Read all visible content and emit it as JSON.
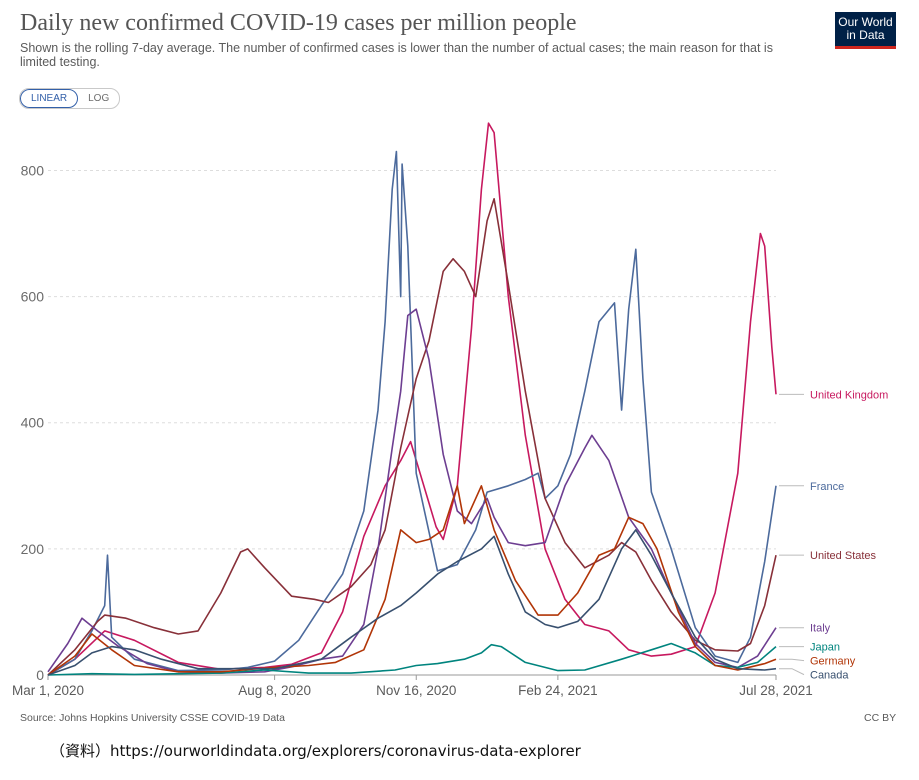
{
  "header": {
    "title": "Daily new confirmed COVID-19 cases per million people",
    "subtitle": "Shown is the rolling 7-day average. The number of confirmed cases is lower than the number of actual cases; the main reason for that is limited testing.",
    "logo_line1": "Our World",
    "logo_line2": "in Data"
  },
  "scale_toggle": {
    "linear_label": "LINEAR",
    "log_label": "LOG",
    "selected": "LINEAR"
  },
  "footer": {
    "source": "Source: Johns Hopkins University CSSE COVID-19 Data",
    "license": "CC BY",
    "note": "（資料）https://ourworldindata.org/explorers/coronavirus-data-explorer"
  },
  "colors": {
    "United Kingdom": "#c7195f",
    "France": "#4c6a9c",
    "United States": "#883039",
    "Italy": "#6d3e91",
    "Japan": "#00847e",
    "Germany": "#b13507",
    "Canada": "#38506f",
    "grid": "#dddddd"
  },
  "chart_data": {
    "type": "line",
    "title": "Daily new confirmed COVID-19 cases per million people",
    "xlabel": "",
    "ylabel": "",
    "x_tick_labels": [
      "Mar 1, 2020",
      "Aug 8, 2020",
      "Nov 16, 2020",
      "Feb 24, 2021",
      "Jul 28, 2021"
    ],
    "x_ticks": [
      "2020-03-01",
      "2020-08-08",
      "2020-11-16",
      "2021-02-24",
      "2021-07-28"
    ],
    "y_ticks": [
      0,
      200,
      400,
      600,
      800
    ],
    "ylim": [
      0,
      880
    ],
    "xlim": [
      "2020-03-01",
      "2021-07-28"
    ],
    "grid": "horizontal dashed",
    "legend": "line-end labels at right",
    "series": [
      {
        "name": "United Kingdom",
        "points": [
          [
            "2020-03-01",
            0
          ],
          [
            "2020-03-20",
            25
          ],
          [
            "2020-04-10",
            70
          ],
          [
            "2020-05-01",
            55
          ],
          [
            "2020-06-01",
            20
          ],
          [
            "2020-07-01",
            9
          ],
          [
            "2020-08-01",
            12
          ],
          [
            "2020-08-20",
            17
          ],
          [
            "2020-09-10",
            35
          ],
          [
            "2020-09-25",
            100
          ],
          [
            "2020-10-10",
            220
          ],
          [
            "2020-10-25",
            300
          ],
          [
            "2020-11-05",
            340
          ],
          [
            "2020-11-12",
            370
          ],
          [
            "2020-11-30",
            235
          ],
          [
            "2020-12-05",
            215
          ],
          [
            "2020-12-15",
            300
          ],
          [
            "2020-12-25",
            550
          ],
          [
            "2021-01-01",
            770
          ],
          [
            "2021-01-06",
            875
          ],
          [
            "2021-01-10",
            860
          ],
          [
            "2021-01-20",
            600
          ],
          [
            "2021-02-01",
            380
          ],
          [
            "2021-02-15",
            200
          ],
          [
            "2021-03-01",
            120
          ],
          [
            "2021-03-15",
            80
          ],
          [
            "2021-04-01",
            70
          ],
          [
            "2021-04-15",
            40
          ],
          [
            "2021-05-01",
            30
          ],
          [
            "2021-05-15",
            33
          ],
          [
            "2021-06-01",
            45
          ],
          [
            "2021-06-15",
            130
          ],
          [
            "2021-07-01",
            320
          ],
          [
            "2021-07-10",
            560
          ],
          [
            "2021-07-17",
            700
          ],
          [
            "2021-07-20",
            680
          ],
          [
            "2021-07-25",
            520
          ],
          [
            "2021-07-28",
            445
          ]
        ]
      },
      {
        "name": "France",
        "points": [
          [
            "2020-03-01",
            0
          ],
          [
            "2020-03-20",
            25
          ],
          [
            "2020-04-01",
            70
          ],
          [
            "2020-04-10",
            110
          ],
          [
            "2020-04-12",
            190
          ],
          [
            "2020-04-15",
            60
          ],
          [
            "2020-05-01",
            25
          ],
          [
            "2020-06-01",
            7
          ],
          [
            "2020-07-01",
            8
          ],
          [
            "2020-07-20",
            12
          ],
          [
            "2020-08-08",
            22
          ],
          [
            "2020-08-25",
            55
          ],
          [
            "2020-09-10",
            110
          ],
          [
            "2020-09-25",
            160
          ],
          [
            "2020-10-10",
            260
          ],
          [
            "2020-10-20",
            420
          ],
          [
            "2020-10-25",
            560
          ],
          [
            "2020-10-30",
            770
          ],
          [
            "2020-11-02",
            830
          ],
          [
            "2020-11-05",
            600
          ],
          [
            "2020-11-06",
            810
          ],
          [
            "2020-11-10",
            680
          ],
          [
            "2020-11-16",
            320
          ],
          [
            "2020-12-01",
            165
          ],
          [
            "2020-12-15",
            175
          ],
          [
            "2020-12-28",
            230
          ],
          [
            "2021-01-05",
            290
          ],
          [
            "2021-01-20",
            300
          ],
          [
            "2021-02-01",
            310
          ],
          [
            "2021-02-10",
            320
          ],
          [
            "2021-02-15",
            280
          ],
          [
            "2021-02-24",
            300
          ],
          [
            "2021-03-05",
            350
          ],
          [
            "2021-03-15",
            450
          ],
          [
            "2021-03-25",
            560
          ],
          [
            "2021-04-05",
            590
          ],
          [
            "2021-04-10",
            420
          ],
          [
            "2021-04-15",
            580
          ],
          [
            "2021-04-20",
            675
          ],
          [
            "2021-04-25",
            470
          ],
          [
            "2021-05-01",
            290
          ],
          [
            "2021-05-15",
            200
          ],
          [
            "2021-06-01",
            75
          ],
          [
            "2021-06-15",
            30
          ],
          [
            "2021-07-01",
            20
          ],
          [
            "2021-07-10",
            60
          ],
          [
            "2021-07-20",
            180
          ],
          [
            "2021-07-28",
            300
          ]
        ]
      },
      {
        "name": "United States",
        "points": [
          [
            "2020-03-01",
            0
          ],
          [
            "2020-03-20",
            40
          ],
          [
            "2020-04-05",
            85
          ],
          [
            "2020-04-10",
            95
          ],
          [
            "2020-04-25",
            90
          ],
          [
            "2020-05-15",
            75
          ],
          [
            "2020-06-01",
            65
          ],
          [
            "2020-06-15",
            70
          ],
          [
            "2020-07-01",
            130
          ],
          [
            "2020-07-15",
            195
          ],
          [
            "2020-07-20",
            200
          ],
          [
            "2020-08-01",
            170
          ],
          [
            "2020-08-20",
            125
          ],
          [
            "2020-09-05",
            120
          ],
          [
            "2020-09-15",
            115
          ],
          [
            "2020-10-01",
            140
          ],
          [
            "2020-10-15",
            175
          ],
          [
            "2020-10-25",
            230
          ],
          [
            "2020-11-05",
            360
          ],
          [
            "2020-11-16",
            470
          ],
          [
            "2020-11-25",
            530
          ],
          [
            "2020-12-05",
            640
          ],
          [
            "2020-12-12",
            660
          ],
          [
            "2020-12-20",
            640
          ],
          [
            "2020-12-28",
            600
          ],
          [
            "2021-01-05",
            720
          ],
          [
            "2021-01-10",
            755
          ],
          [
            "2021-01-20",
            620
          ],
          [
            "2021-02-01",
            450
          ],
          [
            "2021-02-15",
            280
          ],
          [
            "2021-03-01",
            210
          ],
          [
            "2021-03-15",
            170
          ],
          [
            "2021-04-01",
            190
          ],
          [
            "2021-04-10",
            210
          ],
          [
            "2021-04-20",
            195
          ],
          [
            "2021-05-01",
            150
          ],
          [
            "2021-05-15",
            100
          ],
          [
            "2021-06-01",
            55
          ],
          [
            "2021-06-15",
            40
          ],
          [
            "2021-07-01",
            38
          ],
          [
            "2021-07-10",
            50
          ],
          [
            "2021-07-20",
            110
          ],
          [
            "2021-07-28",
            190
          ]
        ]
      },
      {
        "name": "Italy",
        "points": [
          [
            "2020-03-01",
            5
          ],
          [
            "2020-03-15",
            50
          ],
          [
            "2020-03-25",
            90
          ],
          [
            "2020-04-05",
            70
          ],
          [
            "2020-04-20",
            45
          ],
          [
            "2020-05-10",
            18
          ],
          [
            "2020-06-01",
            5
          ],
          [
            "2020-07-01",
            3
          ],
          [
            "2020-08-01",
            5
          ],
          [
            "2020-08-20",
            13
          ],
          [
            "2020-09-10",
            25
          ],
          [
            "2020-09-25",
            30
          ],
          [
            "2020-10-10",
            80
          ],
          [
            "2020-10-20",
            200
          ],
          [
            "2020-10-30",
            360
          ],
          [
            "2020-11-05",
            450
          ],
          [
            "2020-11-10",
            570
          ],
          [
            "2020-11-16",
            580
          ],
          [
            "2020-11-25",
            500
          ],
          [
            "2020-12-05",
            350
          ],
          [
            "2020-12-15",
            260
          ],
          [
            "2020-12-25",
            240
          ],
          [
            "2021-01-05",
            280
          ],
          [
            "2021-01-10",
            250
          ],
          [
            "2021-01-20",
            210
          ],
          [
            "2021-02-01",
            205
          ],
          [
            "2021-02-15",
            210
          ],
          [
            "2021-03-01",
            300
          ],
          [
            "2021-03-15",
            360
          ],
          [
            "2021-03-20",
            380
          ],
          [
            "2021-04-01",
            340
          ],
          [
            "2021-04-15",
            250
          ],
          [
            "2021-05-01",
            200
          ],
          [
            "2021-05-15",
            130
          ],
          [
            "2021-06-01",
            50
          ],
          [
            "2021-06-15",
            20
          ],
          [
            "2021-07-01",
            12
          ],
          [
            "2021-07-15",
            30
          ],
          [
            "2021-07-28",
            75
          ]
        ]
      },
      {
        "name": "Japan",
        "points": [
          [
            "2020-03-01",
            0
          ],
          [
            "2020-04-01",
            2
          ],
          [
            "2020-05-01",
            1
          ],
          [
            "2020-07-01",
            3
          ],
          [
            "2020-08-01",
            8
          ],
          [
            "2020-09-01",
            3
          ],
          [
            "2020-10-01",
            3
          ],
          [
            "2020-11-01",
            8
          ],
          [
            "2020-11-16",
            15
          ],
          [
            "2020-12-01",
            18
          ],
          [
            "2020-12-20",
            25
          ],
          [
            "2021-01-01",
            35
          ],
          [
            "2021-01-08",
            48
          ],
          [
            "2021-01-15",
            45
          ],
          [
            "2021-02-01",
            20
          ],
          [
            "2021-02-24",
            7
          ],
          [
            "2021-03-15",
            8
          ],
          [
            "2021-04-10",
            25
          ],
          [
            "2021-05-01",
            40
          ],
          [
            "2021-05-15",
            50
          ],
          [
            "2021-06-01",
            35
          ],
          [
            "2021-06-15",
            15
          ],
          [
            "2021-07-01",
            12
          ],
          [
            "2021-07-15",
            20
          ],
          [
            "2021-07-28",
            45
          ]
        ]
      },
      {
        "name": "Germany",
        "points": [
          [
            "2020-03-01",
            0
          ],
          [
            "2020-03-20",
            30
          ],
          [
            "2020-04-01",
            65
          ],
          [
            "2020-04-15",
            40
          ],
          [
            "2020-05-01",
            15
          ],
          [
            "2020-06-01",
            5
          ],
          [
            "2020-07-01",
            5
          ],
          [
            "2020-08-08",
            12
          ],
          [
            "2020-09-01",
            15
          ],
          [
            "2020-09-20",
            20
          ],
          [
            "2020-10-10",
            40
          ],
          [
            "2020-10-25",
            120
          ],
          [
            "2020-11-05",
            230
          ],
          [
            "2020-11-16",
            210
          ],
          [
            "2020-11-25",
            215
          ],
          [
            "2020-12-05",
            230
          ],
          [
            "2020-12-15",
            300
          ],
          [
            "2020-12-20",
            240
          ],
          [
            "2021-01-01",
            300
          ],
          [
            "2021-01-10",
            230
          ],
          [
            "2021-01-25",
            150
          ],
          [
            "2021-02-10",
            95
          ],
          [
            "2021-02-24",
            95
          ],
          [
            "2021-03-10",
            130
          ],
          [
            "2021-03-25",
            190
          ],
          [
            "2021-04-05",
            200
          ],
          [
            "2021-04-15",
            250
          ],
          [
            "2021-04-25",
            240
          ],
          [
            "2021-05-05",
            200
          ],
          [
            "2021-05-20",
            100
          ],
          [
            "2021-06-01",
            45
          ],
          [
            "2021-06-15",
            15
          ],
          [
            "2021-07-01",
            8
          ],
          [
            "2021-07-20",
            18
          ],
          [
            "2021-07-28",
            25
          ]
        ]
      },
      {
        "name": "Canada",
        "points": [
          [
            "2020-03-01",
            0
          ],
          [
            "2020-03-20",
            15
          ],
          [
            "2020-04-01",
            35
          ],
          [
            "2020-04-15",
            45
          ],
          [
            "2020-05-01",
            40
          ],
          [
            "2020-05-20",
            25
          ],
          [
            "2020-06-15",
            10
          ],
          [
            "2020-07-15",
            10
          ],
          [
            "2020-08-08",
            10
          ],
          [
            "2020-09-10",
            25
          ],
          [
            "2020-10-01",
            60
          ],
          [
            "2020-10-20",
            90
          ],
          [
            "2020-11-05",
            110
          ],
          [
            "2020-11-16",
            130
          ],
          [
            "2020-12-01",
            160
          ],
          [
            "2020-12-15",
            180
          ],
          [
            "2021-01-01",
            200
          ],
          [
            "2021-01-10",
            220
          ],
          [
            "2021-01-20",
            160
          ],
          [
            "2021-02-01",
            100
          ],
          [
            "2021-02-15",
            80
          ],
          [
            "2021-02-24",
            75
          ],
          [
            "2021-03-10",
            85
          ],
          [
            "2021-03-25",
            120
          ],
          [
            "2021-04-10",
            200
          ],
          [
            "2021-04-20",
            230
          ],
          [
            "2021-05-01",
            190
          ],
          [
            "2021-05-15",
            130
          ],
          [
            "2021-06-01",
            60
          ],
          [
            "2021-06-15",
            25
          ],
          [
            "2021-07-01",
            10
          ],
          [
            "2021-07-20",
            8
          ],
          [
            "2021-07-28",
            10
          ]
        ]
      }
    ]
  }
}
